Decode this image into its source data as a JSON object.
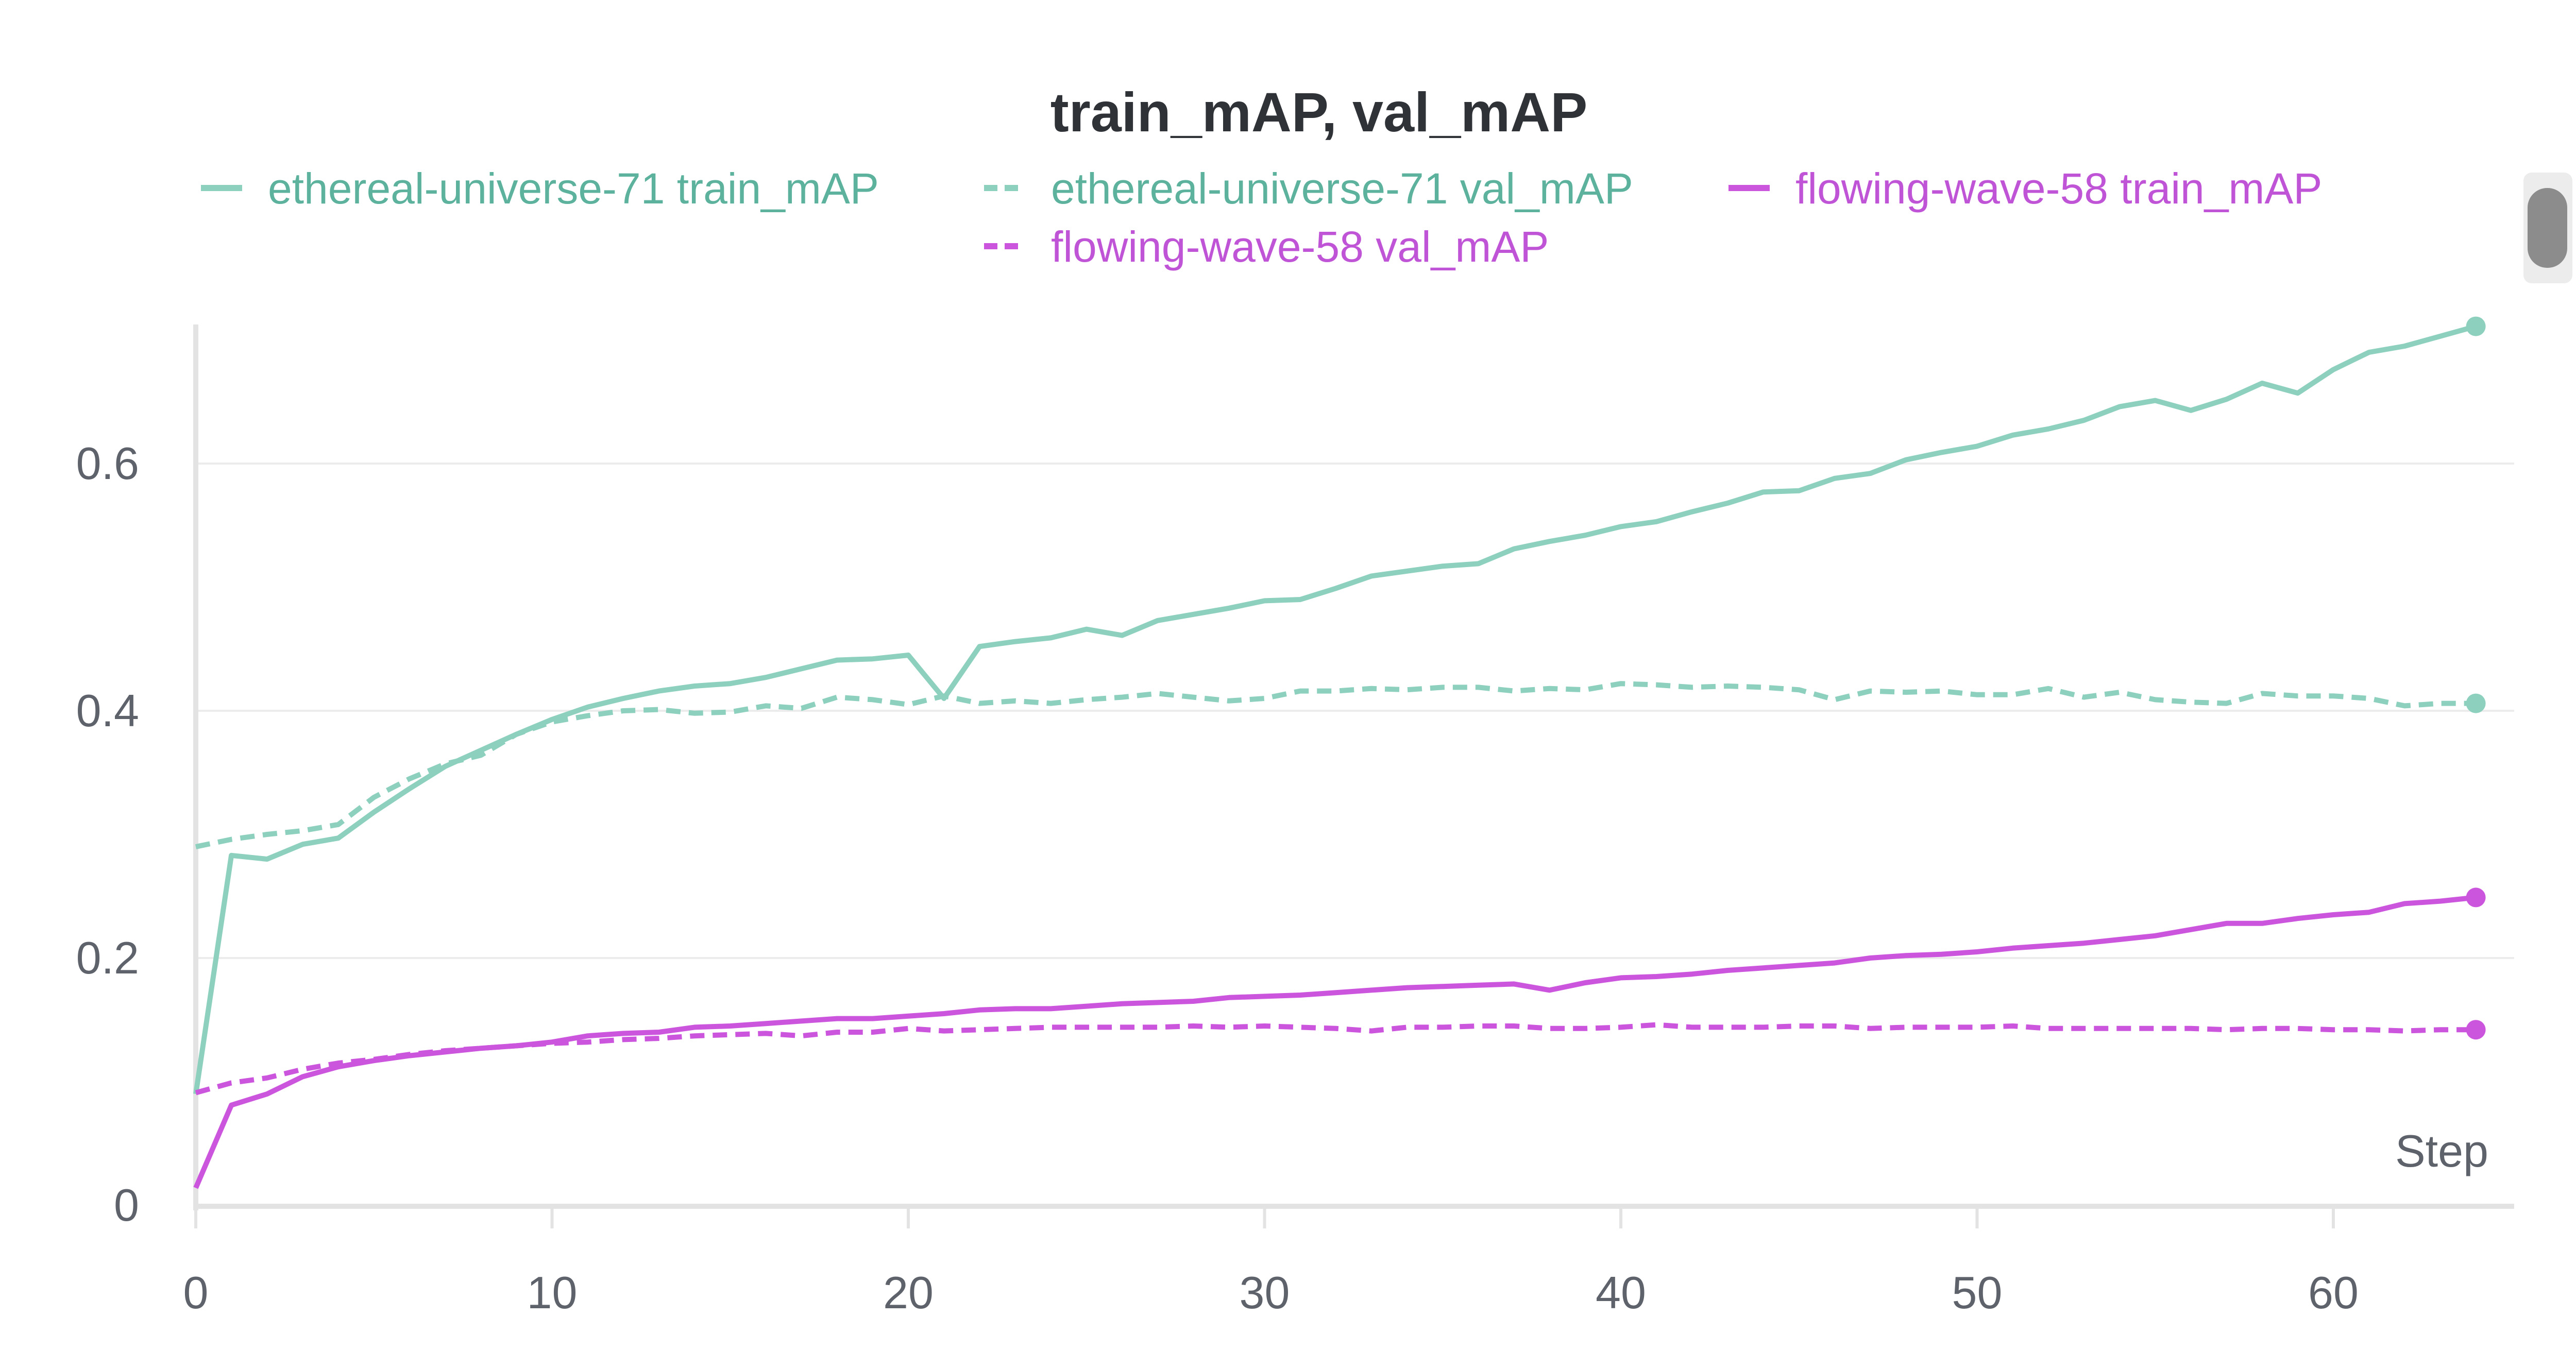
{
  "chart_data": {
    "type": "line",
    "title": "train_mAP, val_mAP",
    "xlabel": "Step",
    "ylabel": "",
    "xlim": [
      0,
      65
    ],
    "ylim": [
      0,
      0.71
    ],
    "x_ticks": [
      0,
      10,
      20,
      30,
      40,
      50,
      60
    ],
    "y_ticks": [
      0,
      0.2,
      0.4,
      0.6
    ],
    "y_tick_labels": [
      "0",
      "0.2",
      "0.4",
      "0.6"
    ],
    "grid": "horizontal",
    "legend_position": "top",
    "colors": {
      "teal": "#8dd0bd",
      "teal_text": "#5cb29d",
      "magenta": "#cc55dd",
      "magenta_text": "#c054d6",
      "axis": "#e3e3e3",
      "grid": "#ececec"
    },
    "series": [
      {
        "name": "ethereal-universe-71 train_mAP",
        "color": "#8dd0bd",
        "dash": "solid",
        "x": [
          0,
          1,
          2,
          3,
          4,
          5,
          6,
          7,
          8,
          9,
          10,
          11,
          12,
          13,
          14,
          15,
          16,
          17,
          18,
          19,
          20,
          21,
          22,
          23,
          24,
          25,
          26,
          27,
          28,
          29,
          30,
          31,
          32,
          33,
          34,
          35,
          36,
          37,
          38,
          39,
          40,
          41,
          42,
          43,
          44,
          45,
          46,
          47,
          48,
          49,
          50,
          51,
          52,
          53,
          54,
          55,
          56,
          57,
          58,
          59,
          60,
          61,
          62,
          63,
          64
        ],
        "values": [
          0.09,
          0.283,
          0.28,
          0.292,
          0.297,
          0.318,
          0.337,
          0.355,
          0.368,
          0.381,
          0.393,
          0.403,
          0.41,
          0.416,
          0.42,
          0.422,
          0.427,
          0.434,
          0.441,
          0.442,
          0.445,
          0.41,
          0.452,
          0.456,
          0.459,
          0.466,
          0.461,
          0.473,
          0.478,
          0.483,
          0.489,
          0.49,
          0.499,
          0.509,
          0.513,
          0.517,
          0.519,
          0.531,
          0.537,
          0.542,
          0.549,
          0.553,
          0.561,
          0.568,
          0.577,
          0.578,
          0.588,
          0.592,
          0.603,
          0.609,
          0.614,
          0.623,
          0.628,
          0.635,
          0.646,
          0.651,
          0.643,
          0.652,
          0.665,
          0.657,
          0.676,
          0.69,
          0.695,
          0.703,
          0.711
        ]
      },
      {
        "name": "ethereal-universe-71 val_mAP",
        "color": "#8dd0bd",
        "dash": "dashed",
        "x": [
          0,
          1,
          2,
          3,
          4,
          5,
          6,
          7,
          8,
          9,
          10,
          11,
          12,
          13,
          14,
          15,
          16,
          17,
          18,
          19,
          20,
          21,
          22,
          23,
          24,
          25,
          26,
          27,
          28,
          29,
          30,
          31,
          32,
          33,
          34,
          35,
          36,
          37,
          38,
          39,
          40,
          41,
          42,
          43,
          44,
          45,
          46,
          47,
          48,
          49,
          50,
          51,
          52,
          53,
          54,
          55,
          56,
          57,
          58,
          59,
          60,
          61,
          62,
          63,
          64
        ],
        "values": [
          0.29,
          0.296,
          0.3,
          0.303,
          0.308,
          0.33,
          0.345,
          0.357,
          0.364,
          0.381,
          0.391,
          0.396,
          0.4,
          0.401,
          0.398,
          0.399,
          0.404,
          0.402,
          0.411,
          0.409,
          0.405,
          0.412,
          0.406,
          0.408,
          0.406,
          0.409,
          0.411,
          0.414,
          0.411,
          0.408,
          0.41,
          0.416,
          0.416,
          0.418,
          0.417,
          0.419,
          0.419,
          0.416,
          0.418,
          0.417,
          0.422,
          0.421,
          0.419,
          0.42,
          0.419,
          0.417,
          0.409,
          0.416,
          0.415,
          0.416,
          0.413,
          0.413,
          0.418,
          0.411,
          0.415,
          0.409,
          0.407,
          0.406,
          0.414,
          0.412,
          0.412,
          0.41,
          0.404,
          0.406,
          0.406
        ]
      },
      {
        "name": "flowing-wave-58 train_mAP",
        "color": "#cc55dd",
        "dash": "solid",
        "x": [
          0,
          1,
          2,
          3,
          4,
          5,
          6,
          7,
          8,
          9,
          10,
          11,
          12,
          13,
          14,
          15,
          16,
          17,
          18,
          19,
          20,
          21,
          22,
          23,
          24,
          25,
          26,
          27,
          28,
          29,
          30,
          31,
          32,
          33,
          34,
          35,
          36,
          37,
          38,
          39,
          40,
          41,
          42,
          43,
          44,
          45,
          46,
          47,
          48,
          49,
          50,
          51,
          52,
          53,
          54,
          55,
          56,
          57,
          58,
          59,
          60,
          61,
          62,
          63,
          64
        ],
        "values": [
          0.014,
          0.081,
          0.09,
          0.104,
          0.112,
          0.117,
          0.121,
          0.124,
          0.127,
          0.129,
          0.132,
          0.137,
          0.139,
          0.14,
          0.144,
          0.145,
          0.147,
          0.149,
          0.151,
          0.151,
          0.153,
          0.155,
          0.158,
          0.159,
          0.159,
          0.161,
          0.163,
          0.164,
          0.165,
          0.168,
          0.169,
          0.17,
          0.172,
          0.174,
          0.176,
          0.177,
          0.178,
          0.179,
          0.174,
          0.18,
          0.184,
          0.185,
          0.187,
          0.19,
          0.192,
          0.194,
          0.196,
          0.2,
          0.202,
          0.203,
          0.205,
          0.208,
          0.21,
          0.212,
          0.215,
          0.218,
          0.223,
          0.228,
          0.228,
          0.232,
          0.235,
          0.237,
          0.244,
          0.246,
          0.249
        ]
      },
      {
        "name": "flowing-wave-58 val_mAP",
        "color": "#cc55dd",
        "dash": "dashed",
        "x": [
          0,
          1,
          2,
          3,
          4,
          5,
          6,
          7,
          8,
          9,
          10,
          11,
          12,
          13,
          14,
          15,
          16,
          17,
          18,
          19,
          20,
          21,
          22,
          23,
          24,
          25,
          26,
          27,
          28,
          29,
          30,
          31,
          32,
          33,
          34,
          35,
          36,
          37,
          38,
          39,
          40,
          41,
          42,
          43,
          44,
          45,
          46,
          47,
          48,
          49,
          50,
          51,
          52,
          53,
          54,
          55,
          56,
          57,
          58,
          59,
          60,
          61,
          62,
          63,
          64
        ],
        "values": [
          0.091,
          0.099,
          0.103,
          0.11,
          0.115,
          0.118,
          0.122,
          0.125,
          0.127,
          0.129,
          0.131,
          0.132,
          0.134,
          0.135,
          0.137,
          0.138,
          0.139,
          0.137,
          0.14,
          0.14,
          0.143,
          0.141,
          0.142,
          0.143,
          0.144,
          0.144,
          0.144,
          0.144,
          0.145,
          0.144,
          0.145,
          0.144,
          0.143,
          0.141,
          0.144,
          0.144,
          0.145,
          0.145,
          0.143,
          0.143,
          0.144,
          0.146,
          0.144,
          0.144,
          0.144,
          0.145,
          0.145,
          0.143,
          0.144,
          0.144,
          0.144,
          0.145,
          0.143,
          0.143,
          0.143,
          0.143,
          0.143,
          0.142,
          0.143,
          0.143,
          0.142,
          0.142,
          0.141,
          0.142,
          0.142
        ]
      }
    ]
  }
}
